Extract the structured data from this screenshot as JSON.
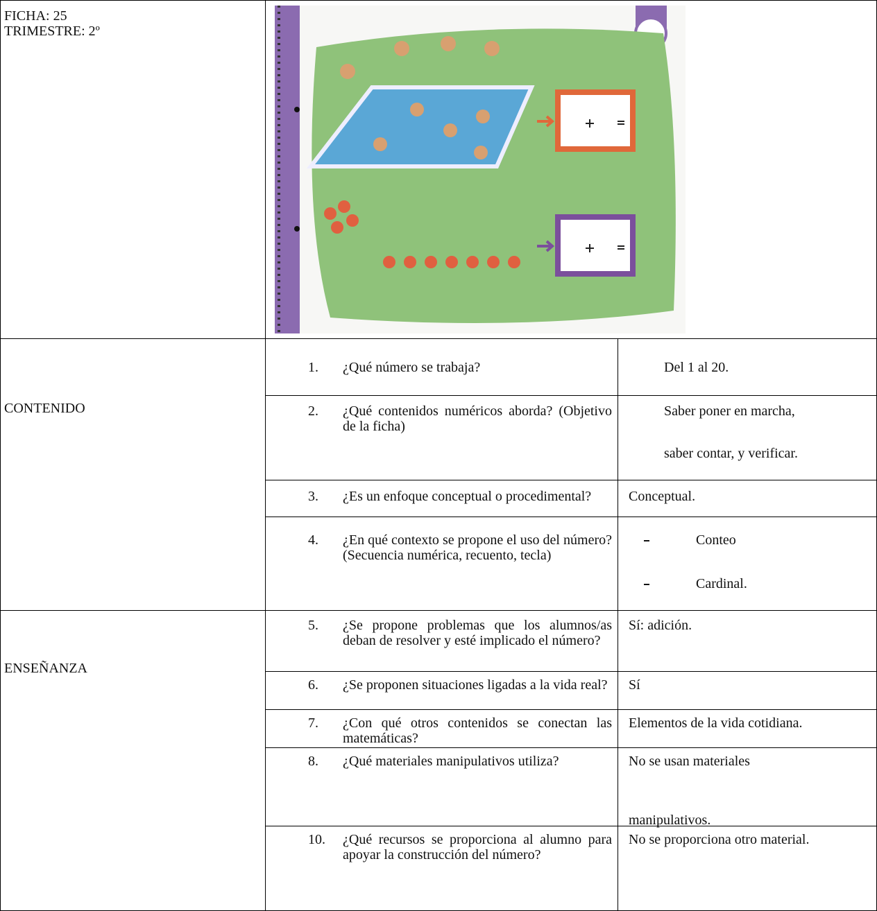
{
  "header": {
    "ficha": "FICHA: 25",
    "trimestre": "TRIMESTRE: 2º"
  },
  "sections": [
    {
      "label": "CONTENIDO",
      "rows": [
        {
          "number": "1.",
          "question": "¿Qué número se trabaja?",
          "answer": [
            "Del 1 al 20."
          ]
        },
        {
          "number": "2.",
          "question": "¿Qué contenidos numéricos aborda? (Objetivo de la ficha)",
          "answer": [
            "Saber poner en marcha,",
            "saber contar, y verificar."
          ]
        },
        {
          "number": "3.",
          "question": "¿Es un enfoque conceptual o procedimental?",
          "answer": [
            "Conceptual."
          ]
        },
        {
          "number": "4.",
          "question": "¿En qué contexto se propone el uso del número? (Secuencia numérica, recuento, tecla)",
          "answer": [
            "Conteo",
            "Cardinal."
          ]
        }
      ]
    },
    {
      "label": "ENSEÑANZA",
      "rows": [
        {
          "number": "5.",
          "question": "¿Se propone problemas que los alumnos/as deban de resolver y esté implicado el número?",
          "answer": [
            "Sí: adición."
          ]
        },
        {
          "number": "6.",
          "question": "¿Se proponen situaciones ligadas a la vida real?",
          "answer": [
            "Sí"
          ]
        },
        {
          "number": "7.",
          "question": "¿Con qué otros contenidos se conectan las matemáticas?",
          "answer": [
            "Elementos de la vida cotidiana."
          ]
        },
        {
          "number": "8.",
          "question": "¿Qué materiales manipulativos utiliza?",
          "answer": [
            "No se usan materiales",
            "manipulativos."
          ]
        },
        {
          "number": "10.",
          "question": "¿Qué recursos se proporciona al alumno para apoyar la construcción del número?",
          "answer": [
            "No se proporciona otro material."
          ]
        }
      ]
    }
  ]
}
